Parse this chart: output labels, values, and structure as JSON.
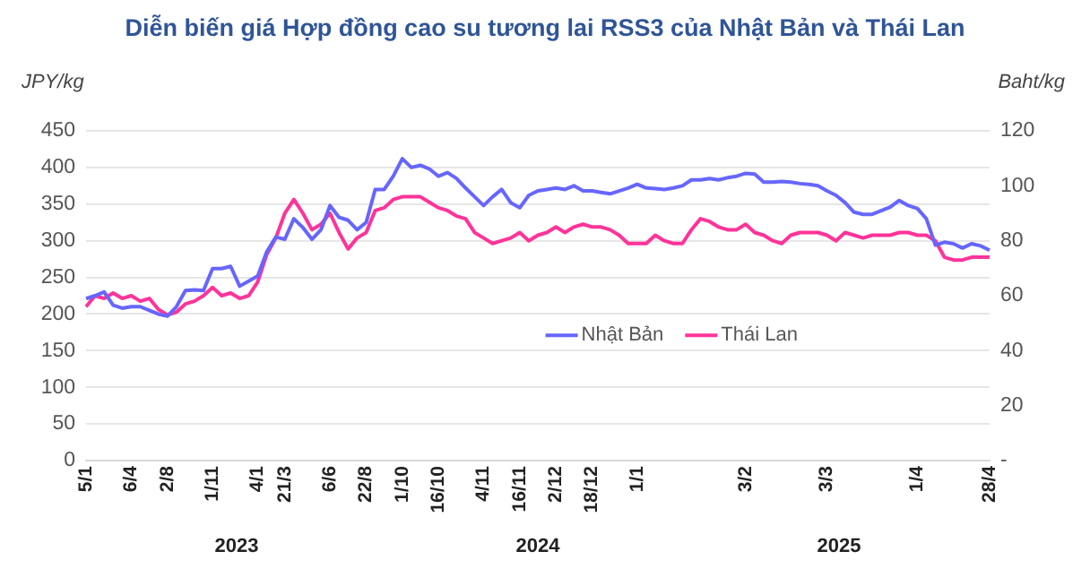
{
  "chart_data": {
    "type": "line",
    "title": "Diễn biến giá Hợp đồng cao su tương lai RSS3 của Nhật Bản và Thái Lan",
    "ylabel": "JPY/kg",
    "y2label": "Baht/kg",
    "categories": [
      "5/1",
      null,
      null,
      null,
      null,
      "6/4",
      null,
      null,
      null,
      "2/8",
      null,
      null,
      null,
      null,
      "1/11",
      null,
      null,
      null,
      null,
      "4/1",
      null,
      null,
      "21/3",
      null,
      null,
      null,
      null,
      "6/6",
      null,
      null,
      null,
      "22/8",
      null,
      null,
      null,
      "1/10",
      null,
      null,
      null,
      "16/10",
      null,
      null,
      null,
      null,
      "4/11",
      null,
      null,
      null,
      "16/11",
      null,
      null,
      null,
      "2/12",
      null,
      null,
      null,
      "18/12",
      null,
      null,
      null,
      null,
      "1/1",
      null,
      null,
      null,
      null,
      null,
      null,
      null,
      null,
      null,
      null,
      null,
      "3/2",
      null,
      null,
      null,
      null,
      null,
      null,
      null,
      null,
      "3/3",
      null,
      null,
      null,
      null,
      null,
      null,
      null,
      null,
      null,
      "1/4",
      null,
      null,
      null,
      null,
      null,
      null,
      null,
      "28/4"
    ],
    "series": [
      {
        "name": "Nhật Bản",
        "color": "#6666ff",
        "values": [
          221,
          225,
          230,
          212,
          208,
          210,
          210,
          205,
          200,
          197,
          210,
          232,
          233,
          232,
          262,
          262,
          265,
          238,
          245,
          252,
          285,
          305,
          302,
          330,
          318,
          302,
          315,
          348,
          332,
          328,
          315,
          325,
          370,
          370,
          388,
          412,
          400,
          403,
          398,
          388,
          393,
          385,
          372,
          360,
          348,
          360,
          370,
          352,
          345,
          362,
          368,
          370,
          372,
          370,
          375,
          368,
          368,
          366,
          364,
          368,
          372,
          377,
          372,
          371,
          370,
          372,
          375,
          383,
          383,
          385,
          383,
          386,
          388,
          392,
          391,
          380,
          380,
          381,
          380,
          378,
          377,
          375,
          368,
          362,
          352,
          339,
          336,
          336,
          341,
          346,
          355,
          348,
          344,
          330,
          294,
          298,
          296,
          290,
          296,
          293,
          287
        ]
      },
      {
        "name": "Thái Lan",
        "color": "#ff3399",
        "axis": "y2",
        "values": [
          56,
          60,
          59,
          61,
          59,
          60,
          58,
          59,
          55,
          53,
          54,
          57,
          58,
          60,
          63,
          60,
          61,
          59,
          60,
          65,
          75,
          81,
          90,
          95,
          90,
          84,
          86,
          90,
          83,
          77,
          81,
          83,
          91,
          92,
          95,
          96,
          96,
          96,
          94,
          92,
          91,
          89,
          88,
          83,
          81,
          79,
          80,
          81,
          83,
          80,
          82,
          83,
          85,
          83,
          85,
          86,
          85,
          85,
          84,
          82,
          79,
          79,
          79,
          82,
          80,
          79,
          79,
          84,
          88,
          87,
          85,
          84,
          84,
          86,
          83,
          82,
          80,
          79,
          82,
          83,
          83,
          83,
          82,
          80,
          83,
          82,
          81,
          82,
          82,
          82,
          83,
          83,
          82,
          82,
          80,
          74,
          73,
          73,
          74,
          74,
          74
        ]
      }
    ],
    "ylim": [
      0,
      450
    ],
    "yticks": [
      0,
      50,
      100,
      150,
      200,
      250,
      300,
      350,
      400,
      450
    ],
    "y2lim": [
      0,
      120
    ],
    "y2ticks": [
      {
        "value": 0,
        "label": "-"
      },
      20,
      40,
      60,
      80,
      100,
      120
    ],
    "grid": "y",
    "legend": "center",
    "marker": "none",
    "line_style": "solid",
    "annotations": [
      "2023",
      "2024",
      "2025"
    ]
  }
}
